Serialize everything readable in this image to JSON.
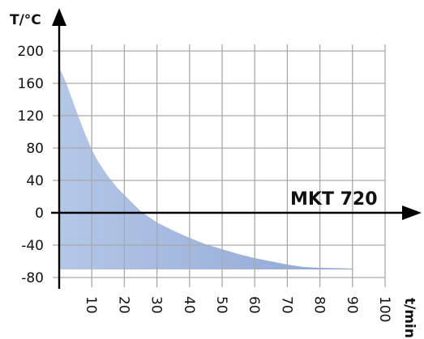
{
  "chart_data": {
    "type": "area",
    "title": "",
    "xlabel": "t/min",
    "ylabel": "T/°C",
    "annotation": "MKT 720",
    "xlim": [
      0,
      100
    ],
    "ylim": [
      -80,
      200
    ],
    "x_ticks": [
      10,
      20,
      30,
      40,
      50,
      60,
      70,
      80,
      90,
      100
    ],
    "y_ticks": [
      200,
      160,
      120,
      80,
      40,
      0,
      -40,
      -80
    ],
    "grid": true,
    "colors": {
      "fill": "#b3c7e6",
      "fill_dark": "#8fa6d6",
      "grid": "#a9a9a9",
      "axis": "#000000"
    },
    "series": [
      {
        "x": [
          0,
          2,
          4,
          6,
          8,
          10,
          12,
          15,
          18,
          20,
          25,
          30,
          35,
          40,
          45,
          50,
          55,
          60,
          65,
          70,
          75,
          80,
          85,
          90
        ],
        "y": [
          180,
          162,
          140,
          118,
          97,
          78,
          63,
          45,
          30,
          22,
          2,
          -12,
          -22,
          -31,
          -39,
          -45,
          -51,
          -56,
          -60,
          -64,
          -67,
          -68,
          -68.5,
          -69
        ],
        "fill_to": -70
      }
    ]
  }
}
